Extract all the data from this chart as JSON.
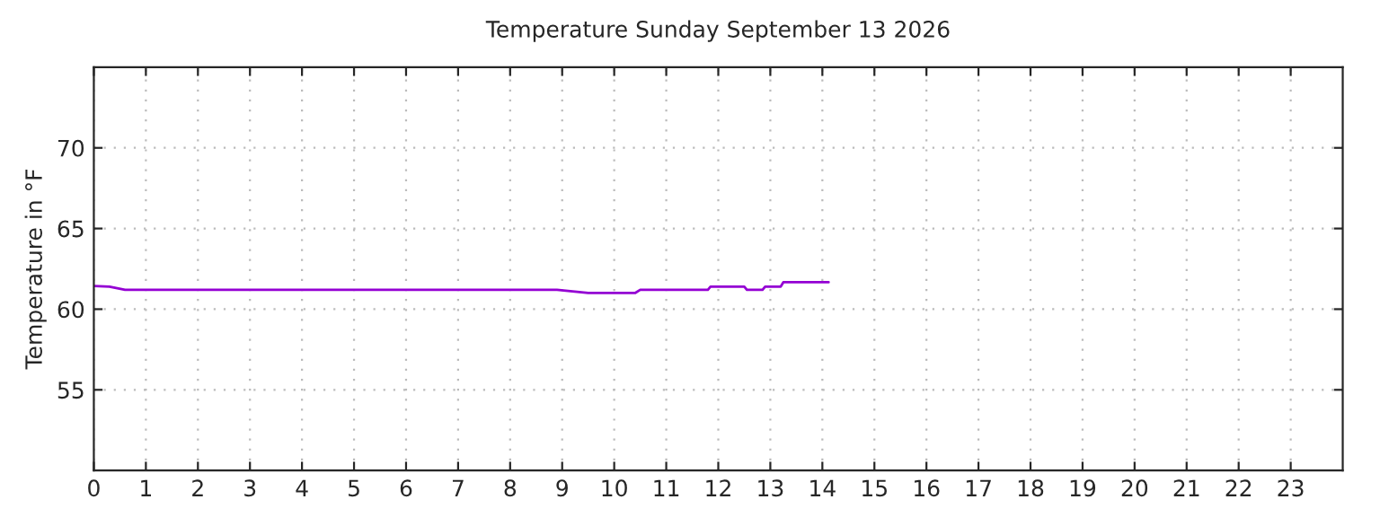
{
  "chart_data": {
    "type": "line",
    "title": "Temperature Sunday September 13 2026",
    "ylabel": "Temperature in °F",
    "x": [
      0,
      0.3,
      0.6,
      8.9,
      9.5,
      10.4,
      10.5,
      11.8,
      11.85,
      12.5,
      12.55,
      12.85,
      12.9,
      13.2,
      13.25,
      14.12
    ],
    "series": [
      {
        "color": "#9400d3",
        "values": [
          61.44,
          61.4,
          61.2,
          61.2,
          61.0,
          61.0,
          61.2,
          61.2,
          61.4,
          61.4,
          61.2,
          61.2,
          61.4,
          61.4,
          61.67,
          61.67
        ]
      }
    ],
    "xlim": [
      0,
      24
    ],
    "xticks": [
      0,
      1,
      2,
      3,
      4,
      5,
      6,
      7,
      8,
      9,
      10,
      11,
      12,
      13,
      14,
      15,
      16,
      17,
      18,
      19,
      20,
      21,
      22,
      23
    ],
    "ylim": [
      50,
      75
    ],
    "yticks": [
      55,
      60,
      65,
      70
    ],
    "grid": true,
    "line_style": "solid",
    "marker": "none",
    "legend": false
  }
}
